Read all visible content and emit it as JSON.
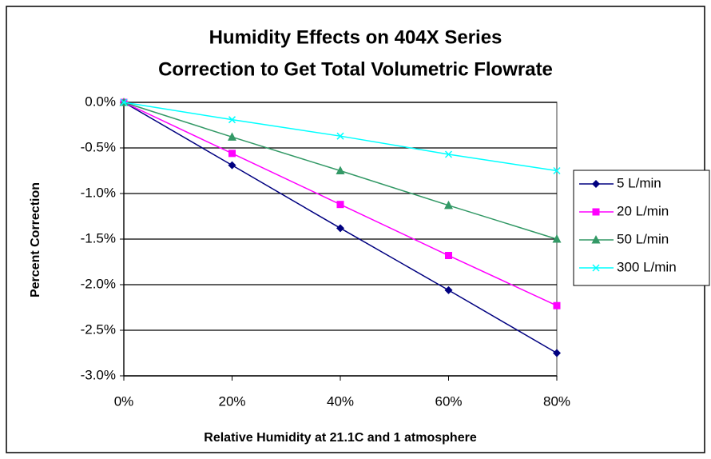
{
  "chart_data": {
    "type": "line",
    "title": [
      "Humidity Effects on 404X Series",
      "Correction to Get Total Volumetric Flowrate"
    ],
    "xlabel": "Relative Humidity at 21.1C and 1 atmosphere",
    "ylabel": "Percent Correction",
    "x": [
      0,
      20,
      40,
      60,
      80
    ],
    "series": [
      {
        "name": "5 L/min",
        "color": "#000080",
        "marker": "diamond",
        "values": [
          0,
          -0.69,
          -1.38,
          -2.06,
          -2.75
        ]
      },
      {
        "name": "20 L/min",
        "color": "#ff00ff",
        "marker": "square",
        "values": [
          0,
          -0.56,
          -1.12,
          -1.68,
          -2.23
        ]
      },
      {
        "name": "50 L/min",
        "color": "#339966",
        "marker": "triangle",
        "values": [
          0,
          -0.38,
          -0.75,
          -1.13,
          -1.5
        ]
      },
      {
        "name": "300 L/min",
        "color": "#00ffff",
        "marker": "x",
        "values": [
          0,
          -0.19,
          -0.37,
          -0.57,
          -0.75
        ]
      }
    ],
    "xlim": [
      0,
      80
    ],
    "xticks": [
      {
        "value": 0,
        "label": "0%"
      },
      {
        "value": 20,
        "label": "20%"
      },
      {
        "value": 40,
        "label": "40%"
      },
      {
        "value": 60,
        "label": "60%"
      },
      {
        "value": 80,
        "label": "80%"
      }
    ],
    "ylim": [
      -3,
      0
    ],
    "yticks": [
      {
        "value": 0,
        "label": "0.0%"
      },
      {
        "value": -0.5,
        "label": "-0.5%"
      },
      {
        "value": -1,
        "label": "-1.0%"
      },
      {
        "value": -1.5,
        "label": "-1.5%"
      },
      {
        "value": -2,
        "label": "-2.0%"
      },
      {
        "value": -2.5,
        "label": "-2.5%"
      },
      {
        "value": -3,
        "label": "-3.0%"
      }
    ],
    "grid": true,
    "legend": "right"
  }
}
